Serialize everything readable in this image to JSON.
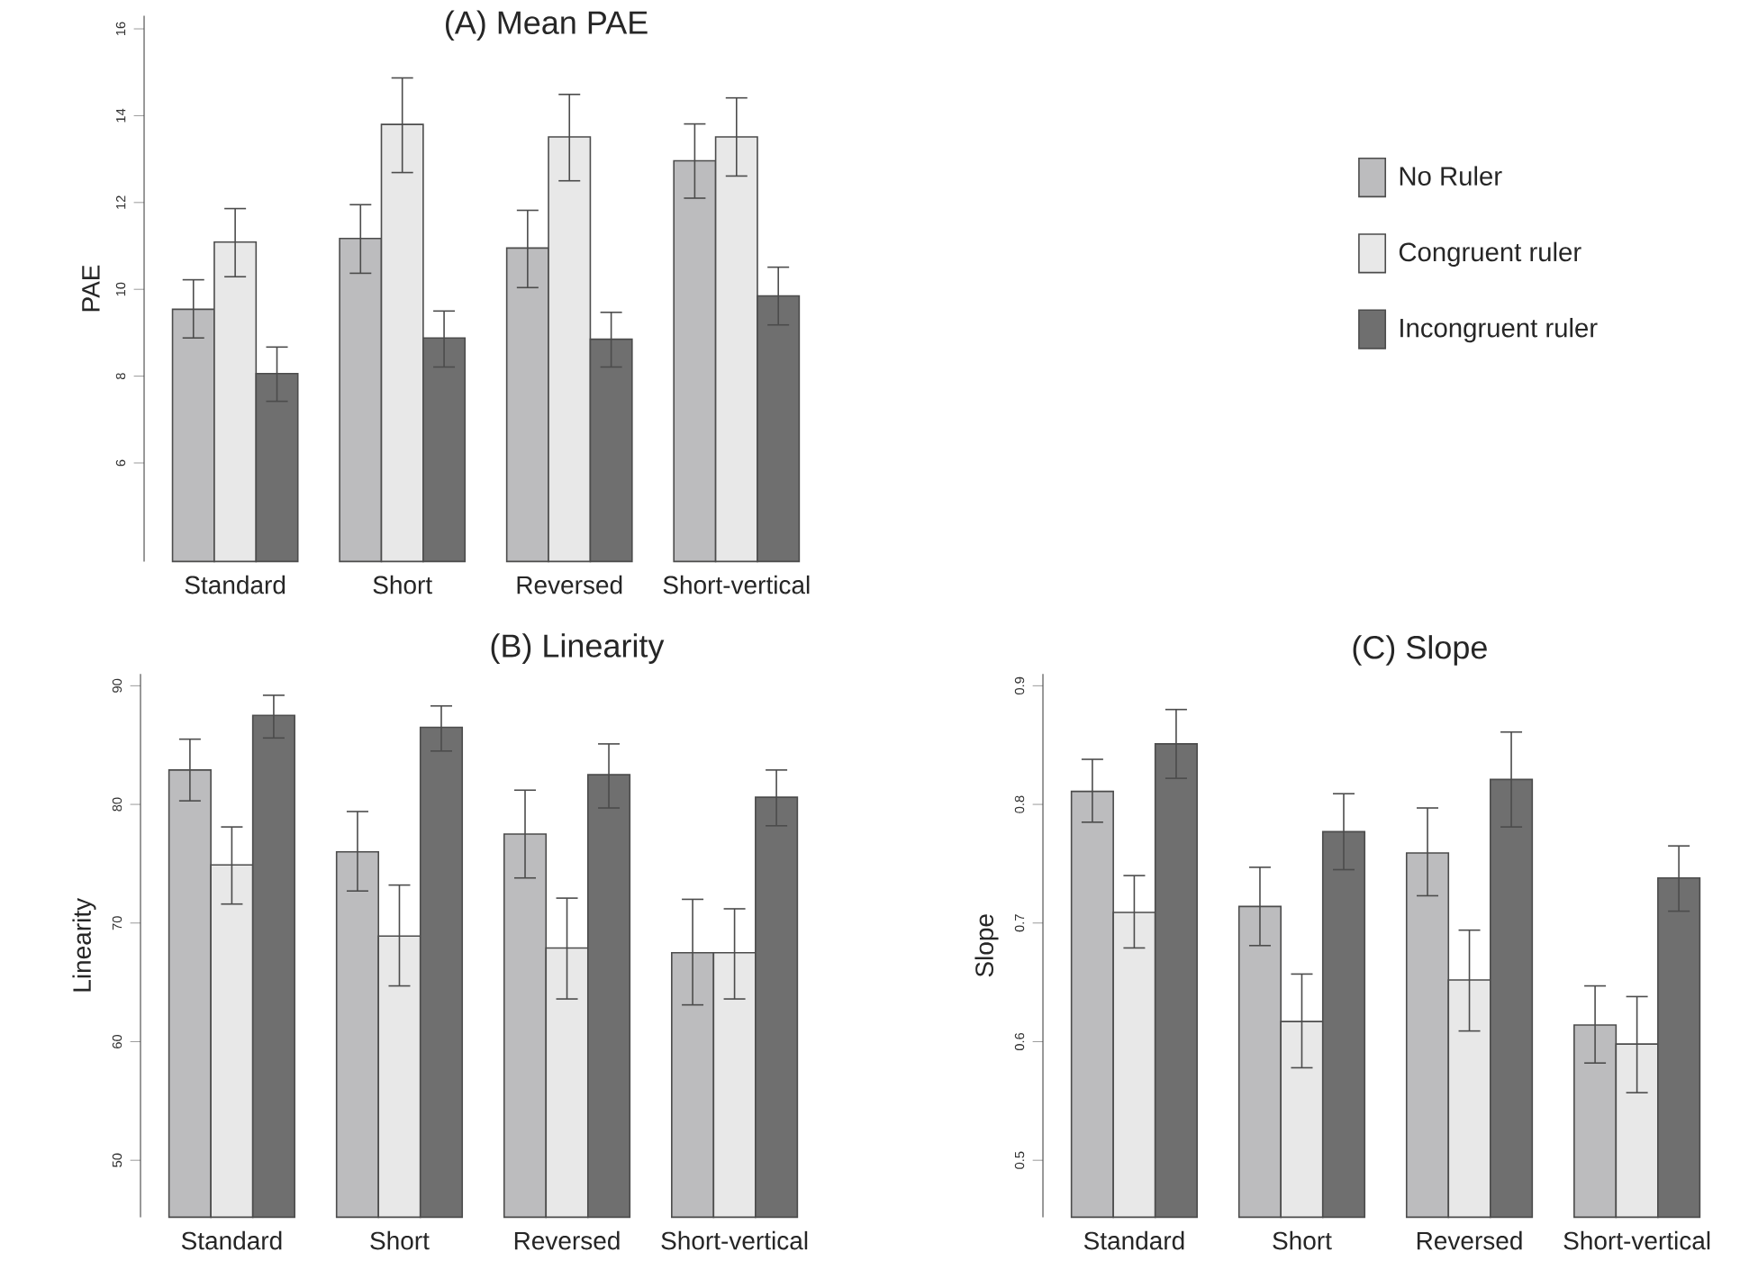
{
  "chart_data": [
    {
      "type": "bar",
      "title": "(A)  Mean PAE",
      "ylabel": "PAE",
      "categories": [
        "Standard",
        "Short",
        "Reversed",
        "Short-vertical"
      ],
      "ylim": [
        3.73,
        16.3
      ],
      "yticks": [
        6,
        8,
        10,
        12,
        14,
        16
      ],
      "legend": "right",
      "series": [
        {
          "name": "No Ruler",
          "color": "#bcbcbe",
          "values": [
            9.54,
            11.17,
            10.95,
            12.96
          ],
          "errors": [
            [
              8.88,
              10.22
            ],
            [
              10.37,
              11.95
            ],
            [
              10.04,
              11.82
            ],
            [
              12.1,
              13.81
            ]
          ]
        },
        {
          "name": "Congruent ruler",
          "color": "#e8e8e8",
          "values": [
            11.09,
            13.8,
            13.51,
            13.51
          ],
          "errors": [
            [
              10.29,
              11.86
            ],
            [
              12.69,
              14.87
            ],
            [
              12.5,
              14.49
            ],
            [
              12.61,
              14.41
            ]
          ]
        },
        {
          "name": "Incongruent ruler",
          "color": "#6f6f6f",
          "values": [
            8.06,
            8.88,
            8.85,
            9.85
          ],
          "errors": [
            [
              7.42,
              8.67
            ],
            [
              8.21,
              9.5
            ],
            [
              8.21,
              9.47
            ],
            [
              9.18,
              10.51
            ]
          ]
        }
      ]
    },
    {
      "type": "bar",
      "title": "(B)  Linearity",
      "ylabel": "Linearity",
      "categories": [
        "Standard",
        "Short",
        "Reversed",
        "Short-vertical"
      ],
      "ylim": [
        45.2,
        91
      ],
      "yticks": [
        50,
        60,
        70,
        80,
        90
      ],
      "series": [
        {
          "color": "#bcbcbe",
          "values": [
            82.9,
            76.0,
            77.5,
            67.5
          ],
          "errors": [
            [
              80.3,
              85.5
            ],
            [
              72.7,
              79.4
            ],
            [
              73.8,
              81.2
            ],
            [
              63.1,
              72.0
            ]
          ]
        },
        {
          "color": "#e8e8e8",
          "values": [
            74.9,
            68.9,
            67.9,
            67.5
          ],
          "errors": [
            [
              71.6,
              78.1
            ],
            [
              64.7,
              73.2
            ],
            [
              63.6,
              72.1
            ],
            [
              63.6,
              71.2
            ]
          ]
        },
        {
          "color": "#6f6f6f",
          "values": [
            87.5,
            86.5,
            82.5,
            80.6
          ],
          "errors": [
            [
              85.6,
              89.2
            ],
            [
              84.5,
              88.3
            ],
            [
              79.7,
              85.1
            ],
            [
              78.2,
              82.9
            ]
          ]
        }
      ]
    },
    {
      "type": "bar",
      "title": "(C)  Slope",
      "ylabel": "Slope",
      "categories": [
        "Standard",
        "Short",
        "Reversed",
        "Short-vertical"
      ],
      "ylim": [
        0.452,
        0.91
      ],
      "yticks": [
        0.5,
        0.6,
        0.7,
        0.8,
        0.9
      ],
      "series": [
        {
          "color": "#bcbcbe",
          "values": [
            0.811,
            0.714,
            0.759,
            0.614
          ],
          "errors": [
            [
              0.785,
              0.838
            ],
            [
              0.681,
              0.747
            ],
            [
              0.723,
              0.797
            ],
            [
              0.582,
              0.647
            ]
          ]
        },
        {
          "color": "#e8e8e8",
          "values": [
            0.709,
            0.617,
            0.652,
            0.598
          ],
          "errors": [
            [
              0.679,
              0.74
            ],
            [
              0.578,
              0.657
            ],
            [
              0.609,
              0.694
            ],
            [
              0.557,
              0.638
            ]
          ]
        },
        {
          "color": "#6f6f6f",
          "values": [
            0.851,
            0.777,
            0.821,
            0.738
          ],
          "errors": [
            [
              0.822,
              0.88
            ],
            [
              0.745,
              0.809
            ],
            [
              0.781,
              0.861
            ],
            [
              0.71,
              0.765
            ]
          ]
        }
      ]
    }
  ]
}
